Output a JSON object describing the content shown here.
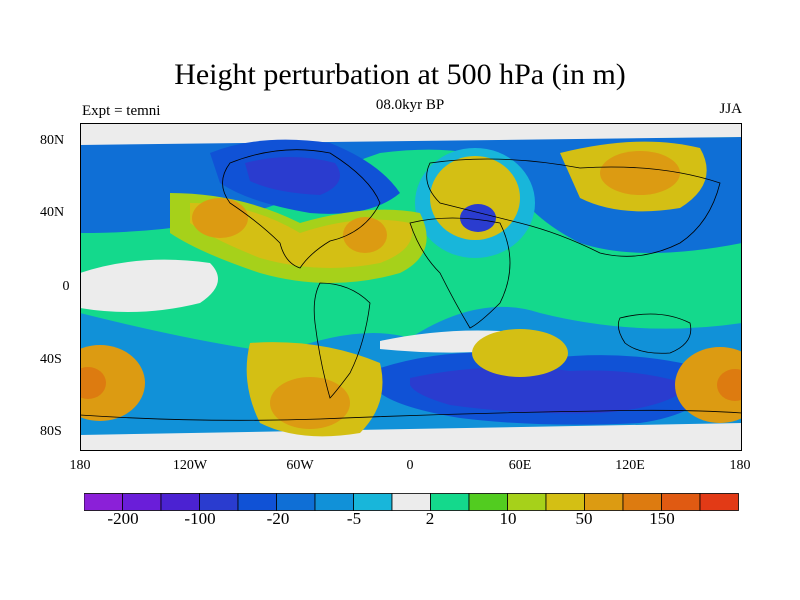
{
  "title": "Height perturbation at 500 hPa (in m)",
  "left_label": "Expt = temni",
  "center_label": "08.0kyr BP",
  "right_label": "JJA",
  "y_ticks": [
    "80N",
    "40N",
    "0",
    "40S",
    "80S"
  ],
  "x_ticks": [
    "180",
    "120W",
    "60W",
    "0",
    "60E",
    "120E",
    "180"
  ],
  "colorbar": {
    "colors": [
      "#8b20d8",
      "#6a1ed9",
      "#4b22d2",
      "#2a3ccf",
      "#1052d6",
      "#0f6fd6",
      "#1191d8",
      "#18b6da",
      "#ececec",
      "#14d98c",
      "#52cc20",
      "#a6d11a",
      "#d4bf14",
      "#dc9b12",
      "#dd7b10",
      "#e05a12",
      "#e23a16"
    ],
    "labels": [
      "-200",
      "-100",
      "-20",
      "-5",
      "2",
      "10",
      "50",
      "150"
    ]
  }
}
